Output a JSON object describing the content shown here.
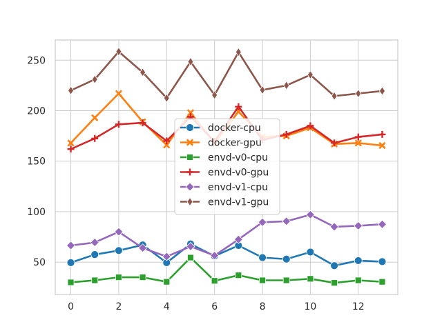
{
  "chart_data": {
    "type": "line",
    "title": "",
    "xlabel": "",
    "ylabel": "",
    "x": [
      0,
      1,
      2,
      3,
      4,
      5,
      6,
      7,
      8,
      9,
      10,
      11,
      12,
      13
    ],
    "xlim": [
      -0.65,
      13.65
    ],
    "ylim": [
      18,
      270
    ],
    "xticks": [
      0,
      2,
      4,
      6,
      8,
      10,
      12
    ],
    "yticks": [
      50,
      100,
      150,
      200,
      250
    ],
    "grid": true,
    "legend_position": "center",
    "series": [
      {
        "name": "docker-cpu",
        "color": "#1f77b4",
        "marker": "circle",
        "values": [
          49.5,
          57.5,
          61.5,
          67,
          49.5,
          68,
          56,
          66.5,
          54.5,
          53,
          60,
          46.5,
          51.5,
          50.5
        ]
      },
      {
        "name": "docker-gpu",
        "color": "#ff7f0e",
        "marker": "x",
        "values": [
          168,
          193,
          217,
          189,
          166,
          198,
          168,
          199,
          174,
          175,
          183,
          167,
          168,
          165.5
        ]
      },
      {
        "name": "envd-v0-cpu",
        "color": "#2ca02c",
        "marker": "square",
        "values": [
          30,
          32,
          35,
          35,
          30.5,
          54.5,
          31.5,
          37,
          32,
          32,
          33.5,
          29.5,
          32,
          30.5
        ]
      },
      {
        "name": "envd-v0-gpu",
        "color": "#d62728",
        "marker": "plus",
        "values": [
          162,
          172.5,
          186.5,
          188,
          170,
          194,
          169.5,
          204,
          171,
          176.5,
          185,
          168,
          174,
          176.5
        ]
      },
      {
        "name": "envd-v1-cpu",
        "color": "#9467bd",
        "marker": "diamond",
        "values": [
          66.5,
          69.5,
          80,
          64,
          55.5,
          65.5,
          56.5,
          72.5,
          89.5,
          90.5,
          97,
          85,
          86,
          87.5
        ]
      },
      {
        "name": "envd-v1-gpu",
        "color": "#8c564b",
        "marker": "thin-diamond",
        "values": [
          220,
          231,
          258.5,
          238,
          212.5,
          248.5,
          215.5,
          258,
          220.5,
          225,
          235.5,
          214.5,
          217,
          219.5
        ]
      }
    ]
  }
}
